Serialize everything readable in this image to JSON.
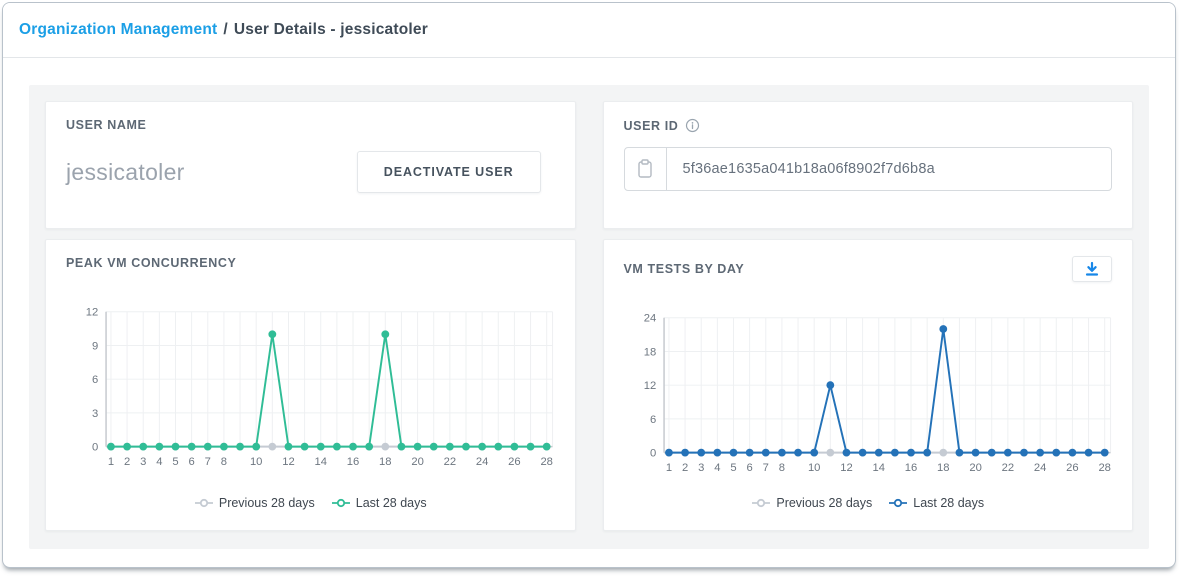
{
  "breadcrumb": {
    "link": "Organization Management",
    "separator": "/",
    "current": "User Details - jessicatoler"
  },
  "cards": {
    "user_name": {
      "title": "USER NAME",
      "value": "jessicatoler",
      "deactivate_label": "DEACTIVATE USER"
    },
    "user_id": {
      "title": "USER ID",
      "value": "5f36ae1635a041b18a06f8902f7d6b8a",
      "info_icon": "info-circle",
      "copy_icon": "clipboard"
    },
    "peak_vm": {
      "title": "PEAK VM CONCURRENCY"
    },
    "vm_tests": {
      "title": "VM TESTS BY DAY",
      "download_icon": "download"
    }
  },
  "colors": {
    "breadcrumb_link": "#1b9fe6",
    "green_series": "#30bd96",
    "blue_series": "#2472b8",
    "previous_series": "#c5cbd3",
    "download_icon": "#1787e8",
    "axis_text": "#6d7680",
    "gridline": "#eef0f2",
    "axis_line": "#c5c9ce"
  },
  "chart_data": [
    {
      "type": "line",
      "title": "PEAK VM CONCURRENCY",
      "x": [
        1,
        2,
        3,
        4,
        5,
        6,
        7,
        8,
        9,
        10,
        11,
        12,
        13,
        14,
        15,
        16,
        17,
        18,
        19,
        20,
        21,
        22,
        23,
        24,
        25,
        26,
        27,
        28
      ],
      "x_tick_labels": [
        1,
        2,
        3,
        4,
        5,
        6,
        7,
        8,
        10,
        12,
        14,
        16,
        18,
        20,
        22,
        24,
        26,
        28
      ],
      "xlabel": "",
      "ylabel": "",
      "ylim": [
        0,
        12
      ],
      "yticks": [
        0,
        3,
        6,
        9,
        12
      ],
      "grid": true,
      "legend_position": "bottom",
      "series": [
        {
          "name": "Previous 28 days",
          "color": "#c5cbd3",
          "values": [
            0,
            0,
            0,
            0,
            0,
            0,
            0,
            0,
            0,
            0,
            0,
            0,
            0,
            0,
            0,
            0,
            0,
            0,
            0,
            0,
            0,
            0,
            0,
            0,
            0,
            0,
            0,
            0
          ]
        },
        {
          "name": "Last 28 days",
          "color": "#30bd96",
          "values": [
            0,
            0,
            0,
            0,
            0,
            0,
            0,
            0,
            0,
            0,
            10,
            0,
            0,
            0,
            0,
            0,
            0,
            10,
            0,
            0,
            0,
            0,
            0,
            0,
            0,
            0,
            0,
            0
          ]
        }
      ]
    },
    {
      "type": "line",
      "title": "VM TESTS BY DAY",
      "x": [
        1,
        2,
        3,
        4,
        5,
        6,
        7,
        8,
        9,
        10,
        11,
        12,
        13,
        14,
        15,
        16,
        17,
        18,
        19,
        20,
        21,
        22,
        23,
        24,
        25,
        26,
        27,
        28
      ],
      "x_tick_labels": [
        1,
        2,
        3,
        4,
        5,
        6,
        7,
        8,
        10,
        12,
        14,
        16,
        18,
        20,
        22,
        24,
        26,
        28
      ],
      "xlabel": "",
      "ylabel": "",
      "ylim": [
        0,
        24
      ],
      "yticks": [
        0,
        6,
        12,
        18,
        24
      ],
      "grid": true,
      "legend_position": "bottom",
      "series": [
        {
          "name": "Previous 28 days",
          "color": "#c5cbd3",
          "values": [
            0,
            0,
            0,
            0,
            0,
            0,
            0,
            0,
            0,
            0,
            0,
            0,
            0,
            0,
            0,
            0,
            0,
            0,
            0,
            0,
            0,
            0,
            0,
            0,
            0,
            0,
            0,
            0
          ]
        },
        {
          "name": "Last 28 days",
          "color": "#2472b8",
          "values": [
            0,
            0,
            0,
            0,
            0,
            0,
            0,
            0,
            0,
            0,
            12,
            0,
            0,
            0,
            0,
            0,
            0,
            22,
            0,
            0,
            0,
            0,
            0,
            0,
            0,
            0,
            0,
            0
          ]
        }
      ]
    }
  ]
}
